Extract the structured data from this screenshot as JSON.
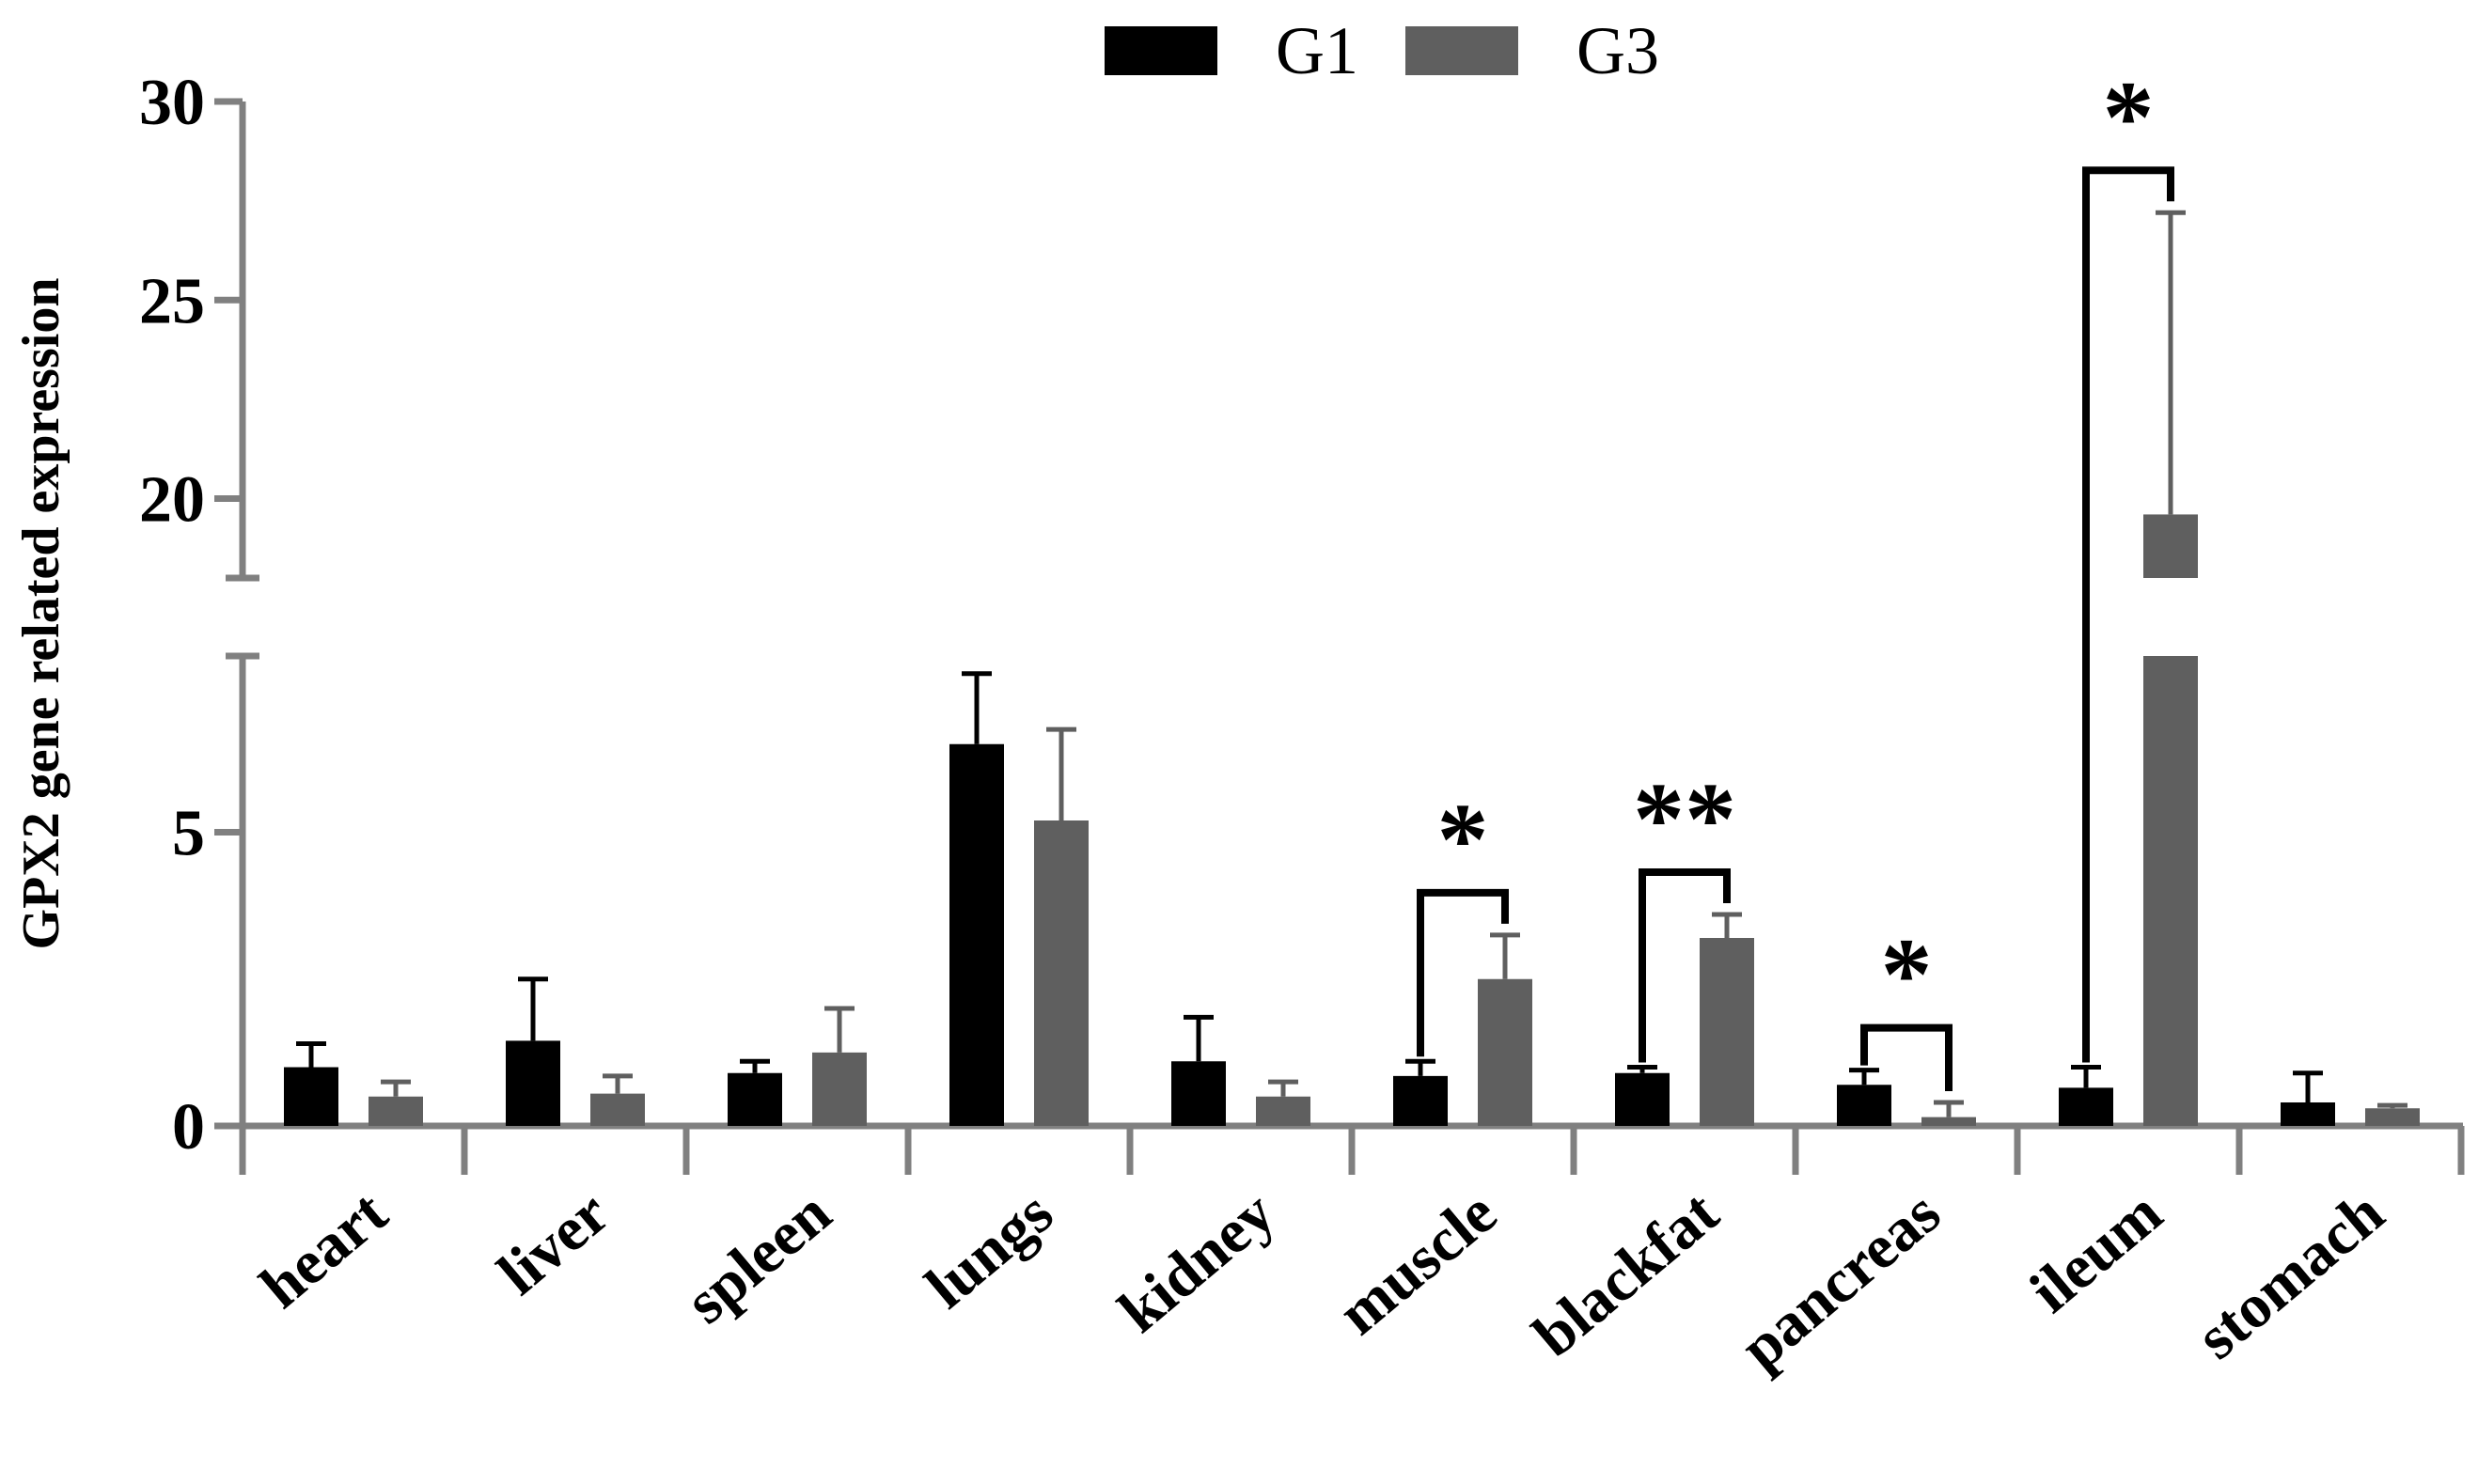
{
  "chart_data": {
    "type": "bar",
    "title": "",
    "xlabel": "",
    "ylabel": "GPX2 gene related expression",
    "categories": [
      "heart",
      "liver",
      "spleen",
      "lungs",
      "kidney",
      "muscle",
      "blackfat",
      "pancreas",
      "ileum",
      "stomach"
    ],
    "series": [
      {
        "name": "G1",
        "color": "#000000",
        "values": [
          1.0,
          1.45,
          0.9,
          6.5,
          1.1,
          0.85,
          0.9,
          0.7,
          0.65,
          0.4
        ],
        "errors": [
          0.4,
          1.05,
          0.2,
          1.2,
          0.75,
          0.25,
          0.1,
          0.25,
          0.35,
          0.5
        ]
      },
      {
        "name": "G3",
        "color": "#5f5f5f",
        "values": [
          0.5,
          0.55,
          1.25,
          5.2,
          0.5,
          2.5,
          3.2,
          0.15,
          19.6,
          0.3
        ],
        "errors": [
          0.25,
          0.3,
          0.75,
          1.55,
          0.25,
          0.75,
          0.4,
          0.25,
          7.6,
          0.05
        ]
      }
    ],
    "y_axis": {
      "broken": true,
      "lower_range": [
        0,
        8
      ],
      "upper_range": [
        18,
        30
      ],
      "ticks_lower": [
        0,
        5
      ],
      "ticks_upper": [
        20,
        25,
        30
      ],
      "tick_labels": [
        "0",
        "5",
        "20",
        "25",
        "30"
      ]
    },
    "significance": [
      {
        "category": "muscle",
        "label": "*"
      },
      {
        "category": "blackfat",
        "label": "**"
      },
      {
        "category": "pancreas",
        "label": "*"
      },
      {
        "category": "ileum",
        "label": "*"
      }
    ],
    "legend": {
      "position": "top-center",
      "entries": [
        "G1",
        "G3"
      ]
    }
  }
}
